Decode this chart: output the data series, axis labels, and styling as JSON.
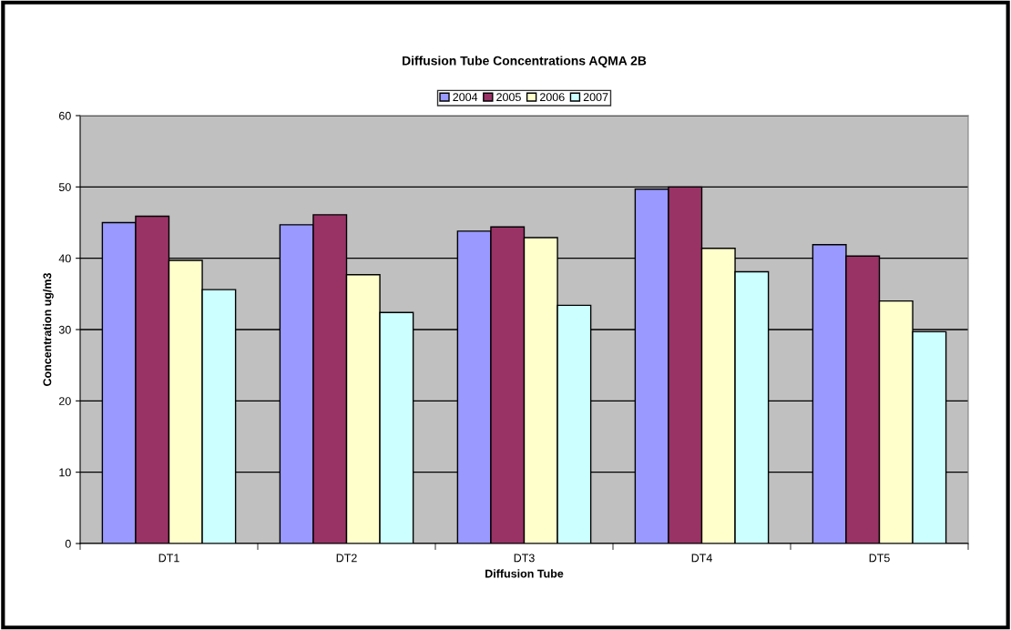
{
  "chart_data": {
    "type": "bar",
    "title": "Diffusion Tube Concentrations AQMA 2B",
    "xlabel": "Diffusion Tube",
    "ylabel": "Concentration ug/m3",
    "categories": [
      "DT1",
      "DT2",
      "DT3",
      "DT4",
      "DT5"
    ],
    "series": [
      {
        "name": "2004",
        "color": "#9999ff",
        "values": [
          45.0,
          44.7,
          43.8,
          49.7,
          41.9
        ]
      },
      {
        "name": "2005",
        "color": "#993366",
        "values": [
          45.9,
          46.1,
          44.4,
          50.0,
          40.3
        ]
      },
      {
        "name": "2006",
        "color": "#ffffcc",
        "values": [
          39.7,
          37.7,
          42.9,
          41.4,
          34.0
        ]
      },
      {
        "name": "2007",
        "color": "#ccffff",
        "values": [
          35.6,
          32.4,
          33.4,
          38.1,
          29.7
        ]
      }
    ],
    "ylim": [
      0,
      60
    ],
    "yticks": [
      0,
      10,
      20,
      30,
      40,
      50,
      60
    ],
    "grid": "y",
    "legend": "top"
  }
}
